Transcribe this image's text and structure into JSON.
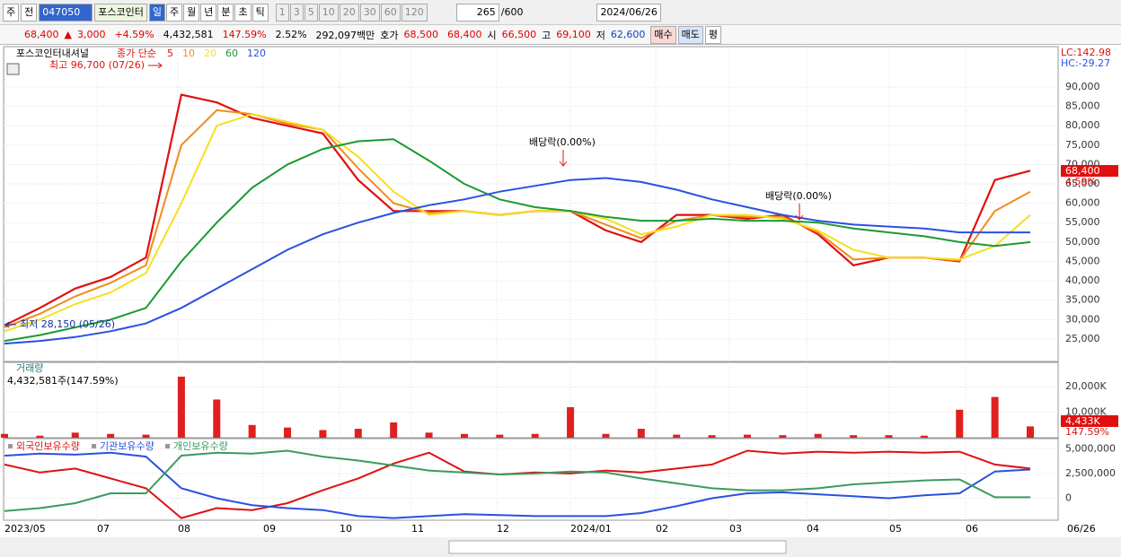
{
  "toolbar": {
    "period_type": "주",
    "compare": "전",
    "code": "047050",
    "name": "포스코인터",
    "intervals": [
      "일",
      "주",
      "월",
      "년",
      "분",
      "초",
      "틱"
    ],
    "counts": [
      "1",
      "3",
      "5",
      "10",
      "20",
      "30",
      "60",
      "120"
    ],
    "bars": "265",
    "max_bars": "/600",
    "date": "2024/06/26"
  },
  "quote": {
    "price": "68,400",
    "sign": "▲",
    "change": "3,000",
    "change_pct": "+4.59%",
    "volume": "4,432,581",
    "volume_ratio": "147.59%",
    "turnover": "2.52%",
    "amount": "292,097백만",
    "bid_label": "호가",
    "ask": "68,500",
    "bid": "68,400",
    "open_label": "시",
    "open": "66,500",
    "high_label": "고",
    "high": "69,100",
    "low_label": "저",
    "low": "62,600",
    "buy": "매수",
    "sell": "매도",
    "avg": "평"
  },
  "chart_data": [
    {
      "type": "line",
      "title": "포스코인터내셔널",
      "legend_prefix": "종가 단순",
      "ylim": [
        19200,
        100400
      ],
      "yticks": [
        {
          "value": 25000,
          "label": "25,000"
        },
        {
          "value": 30000,
          "label": "30,000"
        },
        {
          "value": 35000,
          "label": "35,000"
        },
        {
          "value": 40000,
          "label": "40,000"
        },
        {
          "value": 45000,
          "label": "45,000"
        },
        {
          "value": 50000,
          "label": "50,000"
        },
        {
          "value": 55000,
          "label": "55,000"
        },
        {
          "value": 60000,
          "label": "60,000"
        },
        {
          "value": 65000,
          "label": "65,000"
        },
        {
          "value": 70000,
          "label": "70,000"
        },
        {
          "value": 75000,
          "label": "75,000"
        },
        {
          "value": 80000,
          "label": "80,000"
        },
        {
          "value": 85000,
          "label": "85,000"
        },
        {
          "value": 90000,
          "label": "90,000"
        }
      ],
      "series": [
        {
          "name": "5",
          "color": "#e01010",
          "values": [
            28500,
            33000,
            38000,
            41000,
            46000,
            88000,
            86000,
            82000,
            80000,
            78000,
            66000,
            58000,
            58000,
            58000,
            57000,
            58000,
            58000,
            53000,
            50000,
            57000,
            57000,
            56000,
            57000,
            52000,
            44000,
            46000,
            46000,
            45000,
            66000,
            68400
          ]
        },
        {
          "name": "10",
          "color": "#f08c1c",
          "values": [
            28000,
            31500,
            36000,
            39500,
            44000,
            75000,
            84000,
            83000,
            80500,
            79000,
            69000,
            60000,
            57500,
            58000,
            57000,
            58000,
            58000,
            54500,
            51000,
            55500,
            57000,
            56500,
            56500,
            52500,
            45500,
            46000,
            46000,
            45200,
            58000,
            63000
          ]
        },
        {
          "name": "20",
          "color": "#f5e020",
          "values": [
            27000,
            30000,
            34000,
            37000,
            42000,
            60000,
            80000,
            83000,
            81000,
            79000,
            72000,
            63000,
            57000,
            58000,
            57000,
            58000,
            58000,
            56000,
            52000,
            54000,
            57000,
            57000,
            56000,
            53000,
            48000,
            46000,
            46000,
            45500,
            49000,
            57000
          ]
        },
        {
          "name": "60",
          "color": "#1a9a30",
          "values": [
            24500,
            26000,
            28000,
            30000,
            33000,
            45000,
            55000,
            64000,
            70000,
            74000,
            76000,
            76500,
            71000,
            65000,
            61000,
            59000,
            58000,
            56500,
            55500,
            55500,
            56000,
            55500,
            55500,
            55000,
            53500,
            52500,
            51500,
            50000,
            49000,
            50000
          ]
        },
        {
          "name": "120",
          "color": "#2a50e0",
          "values": [
            23800,
            24500,
            25500,
            27000,
            29000,
            33000,
            38000,
            43000,
            48000,
            52000,
            55000,
            57500,
            59500,
            61000,
            63000,
            64500,
            66000,
            66500,
            65500,
            63500,
            61000,
            59000,
            57000,
            55500,
            54500,
            54000,
            53500,
            52500,
            52500,
            52500
          ]
        }
      ],
      "annotations": {
        "high": "최고 96,700 (07/26)",
        "low": "최저 28,150 (05/26)",
        "ex_dividend": [
          "배당락(0.00%)",
          "배당락(0.00%)"
        ],
        "lc": "LC:142.98",
        "hc": "HC:-29.27",
        "last_price": "68,400",
        "last_change": "4.59%"
      }
    },
    {
      "type": "bar",
      "title": "거래량",
      "subtitle": "4,432,581주(147.59%)",
      "color": "#e02020",
      "ylim": [
        0,
        29600
      ],
      "yticks": [
        {
          "value": 10000,
          "label": "10,000K"
        },
        {
          "value": 20000,
          "label": "20,000K"
        }
      ],
      "values": [
        1500,
        800,
        2000,
        1500,
        1200,
        24000,
        15000,
        5000,
        4000,
        3000,
        3500,
        6000,
        2000,
        1500,
        1200,
        1500,
        12000,
        1500,
        3500,
        1200,
        1000,
        1200,
        1000,
        1500,
        1000,
        1000,
        800,
        11000,
        16000,
        4433
      ],
      "annotations": {
        "last_volume": "4,433K",
        "last_ratio": "147.59%"
      }
    },
    {
      "type": "line",
      "ylim": [
        -2220000,
        6020000
      ],
      "yticks": [
        0,
        {
          "value": 2500000,
          "label": "2,500,000"
        },
        {
          "value": 5000000,
          "label": "5,000,000"
        }
      ],
      "series": [
        {
          "name": "외국인보유수량",
          "color": "#e01010",
          "values": [
            3400000,
            2600000,
            3000000,
            2000000,
            1000000,
            -2000000,
            -1000000,
            -1200000,
            -500000,
            800000,
            2000000,
            3500000,
            4600000,
            2700000,
            2400000,
            2600000,
            2500000,
            2800000,
            2600000,
            3000000,
            3400000,
            4800000,
            4500000,
            4700000,
            4600000,
            4700000,
            4600000,
            4700000,
            3400000,
            3000000
          ]
        },
        {
          "name": "기관보유수량",
          "color": "#2a50e0",
          "values": [
            4300000,
            4500000,
            4400000,
            4600000,
            4200000,
            1000000,
            0,
            -700000,
            -1000000,
            -1200000,
            -1800000,
            -2000000,
            -1800000,
            -1600000,
            -1700000,
            -1800000,
            -1800000,
            -1800000,
            -1500000,
            -800000,
            0,
            500000,
            600000,
            400000,
            200000,
            0,
            300000,
            500000,
            2700000,
            2900000
          ]
        },
        {
          "name": "개인보유수량",
          "color": "#3a9a60",
          "values": [
            -1300000,
            -1000000,
            -500000,
            500000,
            500000,
            4300000,
            4600000,
            4500000,
            4800000,
            4200000,
            3800000,
            3300000,
            2800000,
            2600000,
            2400000,
            2500000,
            2700000,
            2600000,
            2000000,
            1500000,
            1000000,
            800000,
            800000,
            1000000,
            1400000,
            1600000,
            1800000,
            1900000,
            100000,
            100000
          ]
        }
      ]
    }
  ],
  "x_axis": {
    "labels": [
      "2023/05",
      "07",
      "08",
      "09",
      "10",
      "11",
      "12",
      "2024/01",
      "02",
      "03",
      "04",
      "05",
      "06"
    ],
    "end_label": "06/26"
  }
}
